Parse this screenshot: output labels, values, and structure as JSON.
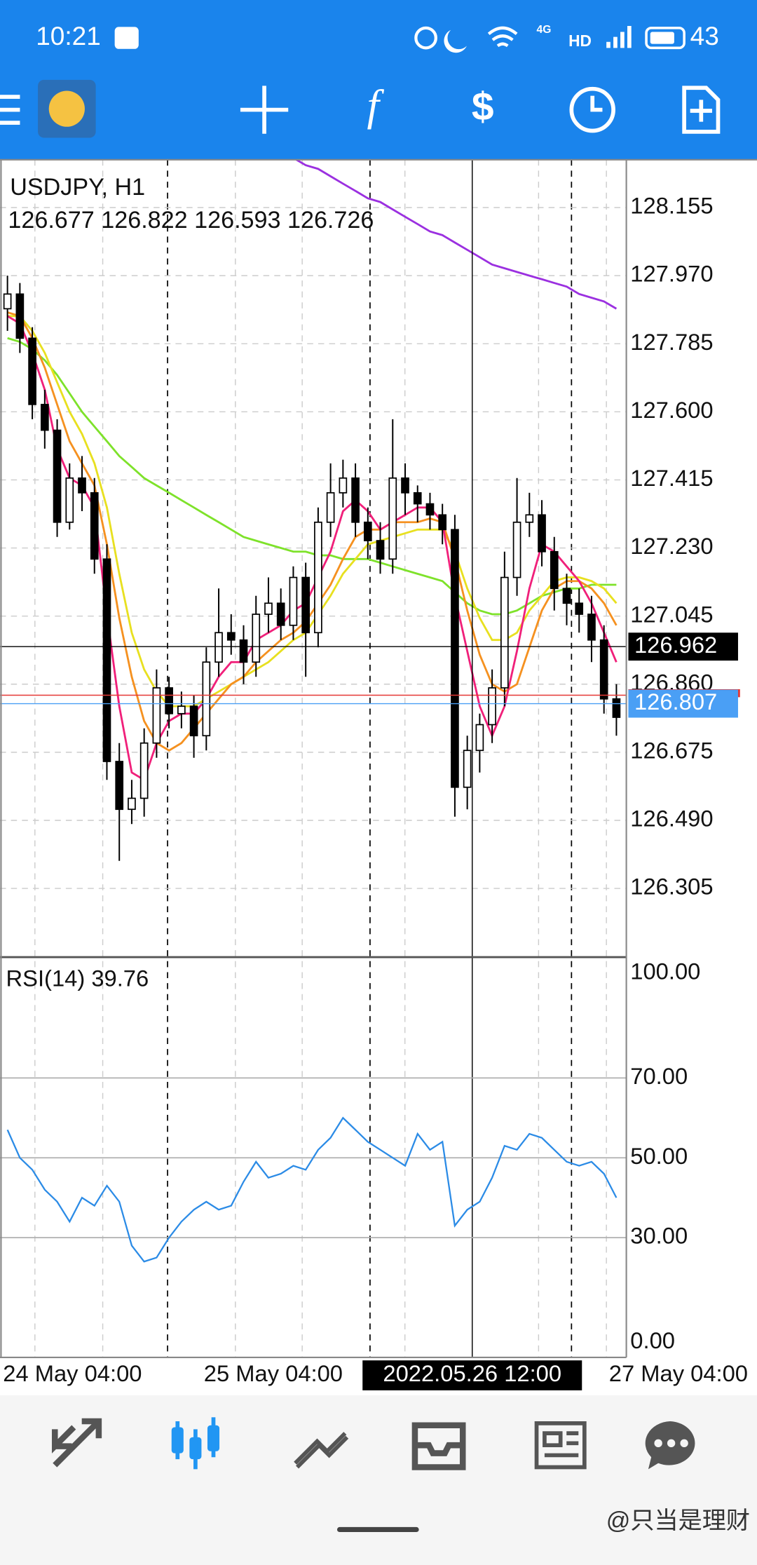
{
  "status_bar": {
    "time": "10:21",
    "network": "4G",
    "hd": "HD",
    "battery": "43"
  },
  "toolbar": {
    "function_icon": "f"
  },
  "chart_data": [
    {
      "type": "candlestick",
      "title": "USDJPY, H1",
      "subtitle": "126.677 126.822 126.593 126.726",
      "open": [
        127.88,
        127.92,
        127.8,
        127.62,
        127.55,
        127.3,
        127.42,
        127.38,
        127.2,
        126.65,
        126.52,
        126.55,
        126.7,
        126.85,
        126.78,
        126.8,
        126.72,
        126.92,
        127.0,
        126.98,
        126.92,
        127.05,
        127.08,
        127.02,
        127.15,
        127.0,
        127.3,
        127.38,
        127.42,
        127.3,
        127.25,
        127.2,
        127.42,
        127.38,
        127.35,
        127.32,
        127.28,
        126.58,
        126.68,
        126.75,
        126.85,
        127.15,
        127.3,
        127.32,
        127.22,
        127.12,
        127.08,
        127.05,
        126.98,
        126.82
      ],
      "high": [
        127.97,
        127.95,
        127.83,
        127.66,
        127.58,
        127.46,
        127.48,
        127.42,
        127.24,
        126.7,
        126.6,
        126.74,
        126.9,
        126.88,
        126.84,
        126.83,
        126.96,
        127.12,
        127.05,
        127.02,
        127.1,
        127.15,
        127.12,
        127.18,
        127.19,
        127.34,
        127.46,
        127.47,
        127.46,
        127.34,
        127.3,
        127.58,
        127.46,
        127.4,
        127.38,
        127.35,
        127.32,
        126.72,
        126.78,
        126.9,
        127.22,
        127.42,
        127.38,
        127.36,
        127.26,
        127.16,
        127.12,
        127.1,
        127.02,
        126.86
      ],
      "low": [
        127.82,
        127.76,
        127.58,
        127.5,
        127.26,
        127.28,
        127.33,
        127.16,
        126.6,
        126.38,
        126.48,
        126.5,
        126.66,
        126.74,
        126.74,
        126.66,
        126.68,
        126.88,
        126.94,
        126.86,
        126.88,
        127.0,
        126.98,
        126.98,
        126.88,
        126.96,
        127.26,
        127.34,
        127.26,
        127.2,
        127.16,
        127.16,
        127.32,
        127.3,
        127.28,
        127.24,
        126.5,
        126.52,
        126.62,
        126.7,
        126.8,
        127.1,
        127.26,
        127.18,
        127.06,
        127.02,
        127.0,
        126.92,
        126.78,
        126.72
      ],
      "close": [
        127.92,
        127.8,
        127.62,
        127.55,
        127.3,
        127.42,
        127.38,
        127.2,
        126.65,
        126.52,
        126.55,
        126.7,
        126.85,
        126.78,
        126.8,
        126.72,
        126.92,
        127.0,
        126.98,
        126.92,
        127.05,
        127.08,
        127.02,
        127.15,
        127.0,
        127.3,
        127.38,
        127.42,
        127.3,
        127.25,
        127.2,
        127.42,
        127.38,
        127.35,
        127.32,
        127.28,
        126.58,
        126.68,
        126.75,
        126.85,
        127.15,
        127.3,
        127.32,
        127.22,
        127.12,
        127.08,
        127.05,
        126.98,
        126.82,
        126.77
      ],
      "up_color": "#ffffff",
      "down_color": "#000000",
      "series": [
        {
          "color": "#9b30e0",
          "values": [
            null,
            null,
            null,
            null,
            null,
            null,
            null,
            null,
            null,
            null,
            null,
            null,
            null,
            null,
            null,
            null,
            null,
            null,
            null,
            null,
            null,
            null,
            null,
            128.29,
            128.27,
            128.26,
            128.24,
            128.22,
            128.2,
            128.18,
            128.17,
            128.15,
            128.13,
            128.11,
            128.09,
            128.08,
            128.06,
            128.04,
            128.02,
            128.0,
            127.99,
            127.98,
            127.97,
            127.96,
            127.95,
            127.94,
            127.92,
            127.91,
            127.9,
            127.88
          ]
        },
        {
          "color": "#7ee22a",
          "values": [
            127.8,
            127.79,
            127.77,
            127.74,
            127.7,
            127.65,
            127.6,
            127.56,
            127.52,
            127.48,
            127.45,
            127.42,
            127.4,
            127.38,
            127.36,
            127.34,
            127.32,
            127.3,
            127.28,
            127.26,
            127.25,
            127.24,
            127.23,
            127.22,
            127.22,
            127.21,
            127.21,
            127.2,
            127.2,
            127.2,
            127.19,
            127.18,
            127.17,
            127.16,
            127.15,
            127.14,
            127.11,
            127.08,
            127.06,
            127.05,
            127.05,
            127.06,
            127.08,
            127.1,
            127.11,
            127.12,
            127.12,
            127.13,
            127.13,
            127.13
          ]
        },
        {
          "color": "#e8e020",
          "values": [
            127.86,
            127.86,
            127.82,
            127.76,
            127.68,
            127.6,
            127.54,
            127.46,
            127.34,
            127.16,
            127.0,
            126.9,
            126.84,
            126.8,
            126.8,
            126.8,
            126.82,
            126.84,
            126.86,
            126.88,
            126.9,
            126.92,
            126.95,
            126.98,
            127.0,
            127.05,
            127.1,
            127.16,
            127.2,
            127.24,
            127.25,
            127.26,
            127.27,
            127.28,
            127.28,
            127.28,
            127.22,
            127.12,
            127.04,
            126.98,
            126.98,
            127.0,
            127.06,
            127.1,
            127.14,
            127.15,
            127.15,
            127.14,
            127.12,
            127.08
          ]
        },
        {
          "color": "#f59120",
          "values": [
            127.87,
            127.86,
            127.8,
            127.72,
            127.62,
            127.52,
            127.46,
            127.4,
            127.24,
            127.04,
            126.88,
            126.76,
            126.7,
            126.68,
            126.7,
            126.74,
            126.78,
            126.82,
            126.86,
            126.88,
            126.92,
            126.95,
            126.98,
            127.0,
            127.03,
            127.08,
            127.13,
            127.2,
            127.26,
            127.28,
            127.28,
            127.3,
            127.3,
            127.3,
            127.31,
            127.3,
            127.2,
            127.06,
            126.94,
            126.86,
            126.84,
            126.86,
            126.96,
            127.06,
            127.12,
            127.14,
            127.14,
            127.12,
            127.08,
            127.02
          ]
        },
        {
          "color": "#f0207a",
          "values": [
            127.86,
            127.84,
            127.76,
            127.66,
            127.5,
            127.42,
            127.4,
            127.34,
            127.05,
            126.8,
            126.62,
            126.6,
            126.7,
            126.76,
            126.78,
            126.78,
            126.82,
            126.88,
            126.92,
            126.92,
            126.98,
            127.0,
            127.02,
            127.06,
            127.08,
            127.15,
            127.22,
            127.33,
            127.36,
            127.33,
            127.28,
            127.3,
            127.32,
            127.34,
            127.34,
            127.3,
            127.1,
            126.95,
            126.8,
            126.72,
            126.8,
            126.95,
            127.12,
            127.24,
            127.22,
            127.18,
            127.14,
            127.08,
            127.0,
            126.92
          ]
        }
      ],
      "ylim": [
        126.121,
        128.285
      ],
      "yticks": [
        128.155,
        {
          "value": 127.97,
          "label": "127.970"
        },
        127.785,
        {
          "value": 127.6,
          "label": "127.600"
        },
        127.415,
        {
          "value": 127.23,
          "label": "127.230"
        },
        127.045,
        {
          "value": 126.86,
          "label": "126.860"
        },
        126.675,
        {
          "value": 126.49,
          "label": "126.490"
        },
        126.305
      ],
      "xlim": [
        -0.6,
        49.8
      ],
      "xticks": [
        {
          "value": -0.36,
          "label": "24 May 04:00"
        },
        {
          "value": 15.8,
          "label": "25 May 04:00"
        },
        {
          "value": 48.4,
          "label": "27 May 04:00"
        }
      ],
      "crosshair": {
        "x": 37.4,
        "x_label": "2022.05.26 12:00",
        "y": 126.962
      },
      "bid": 126.807,
      "ask": 126.83,
      "bid_color": "#4a9ff5",
      "ask_color": "#e53935",
      "grid": true
    },
    {
      "type": "line",
      "title": "RSI(14) 39.76",
      "color": "#2b8be6",
      "values": [
        57,
        50,
        47,
        42,
        39,
        34,
        40,
        38,
        43,
        39,
        28,
        24,
        25,
        30,
        34,
        37,
        39,
        37,
        38,
        44,
        49,
        45,
        46,
        48,
        47,
        52,
        55,
        60,
        57,
        54,
        52,
        50,
        48,
        56,
        52,
        54,
        33,
        37,
        39,
        45,
        53,
        52,
        56,
        55,
        52,
        49,
        48,
        49,
        46,
        40
      ],
      "ylim": [
        0,
        100
      ],
      "xlim": [
        -0.6,
        49.8
      ],
      "yticks": [
        {
          "value": 100,
          "label": "100.00"
        },
        {
          "value": 70,
          "label": "70.00"
        },
        {
          "value": 50,
          "label": "50.00"
        },
        {
          "value": 30,
          "label": "30.00"
        },
        {
          "value": 0,
          "label": "0.00"
        }
      ]
    }
  ],
  "watermark": "@只当是理财"
}
